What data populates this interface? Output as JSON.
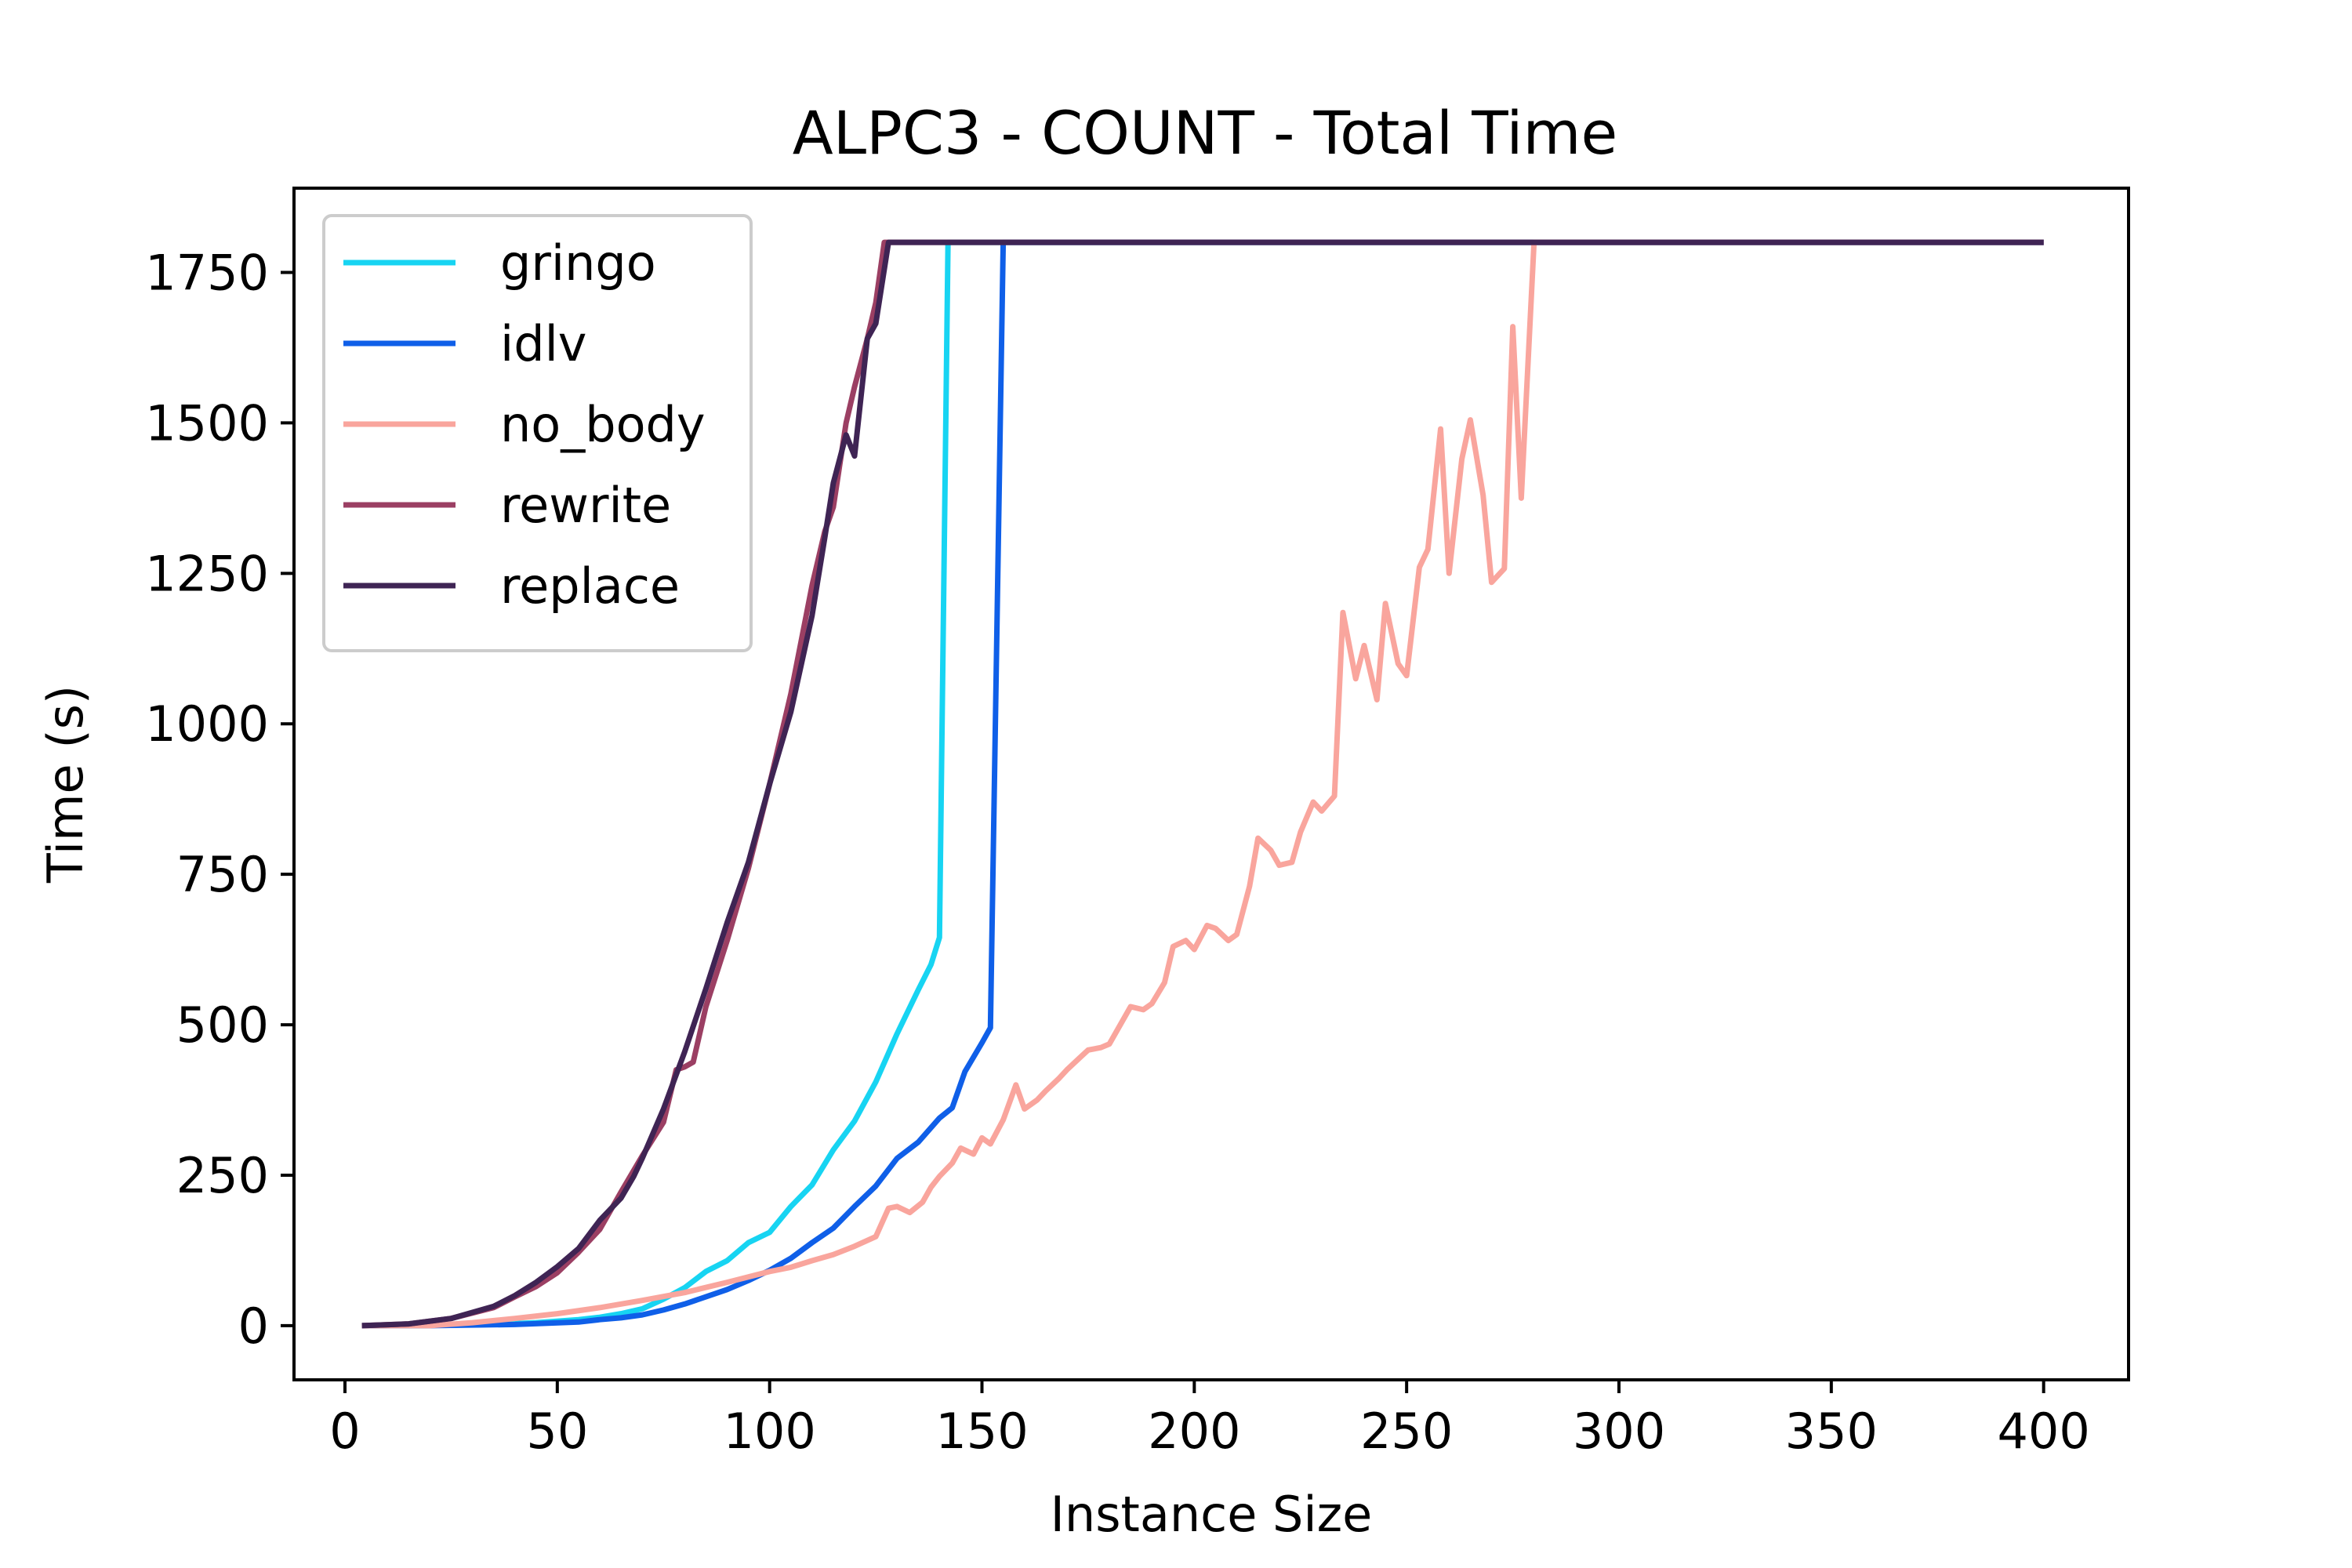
{
  "chart_data": {
    "type": "line",
    "title": "ALPC3 - COUNT - Total Time",
    "xlabel": "Instance Size",
    "ylabel": "Time (s)",
    "xlim": [
      -12,
      420
    ],
    "ylim": [
      -90,
      1890
    ],
    "xticks": [
      0,
      50,
      100,
      150,
      200,
      250,
      300,
      350,
      400
    ],
    "yticks": [
      0,
      250,
      500,
      750,
      1000,
      1250,
      1500,
      1750
    ],
    "grid": false,
    "legend_position": "top-left",
    "series": [
      {
        "name": "gringo",
        "color": "#17d4f2",
        "x": [
          4,
          15,
          25,
          35,
          45,
          55,
          60,
          65,
          70,
          75,
          80,
          85,
          90,
          95,
          100,
          105,
          110,
          115,
          120,
          125,
          130,
          135,
          138,
          140,
          142,
          150,
          200,
          250,
          300,
          350,
          400
        ],
        "y": [
          0,
          0,
          1,
          2,
          5,
          10,
          14,
          20,
          28,
          44,
          63,
          90,
          108,
          138,
          155,
          198,
          234,
          292,
          340,
          405,
          485,
          558,
          600,
          645,
          1800,
          1800,
          1800,
          1800,
          1800,
          1800,
          1800
        ]
      },
      {
        "name": "idlv",
        "color": "#0f5fe8",
        "x": [
          4,
          20,
          40,
          55,
          60,
          65,
          70,
          75,
          80,
          85,
          90,
          95,
          100,
          105,
          110,
          115,
          120,
          125,
          130,
          135,
          140,
          143,
          146,
          150,
          152,
          155,
          200,
          250,
          300,
          350,
          400
        ],
        "y": [
          0,
          0,
          2,
          6,
          10,
          13,
          18,
          26,
          36,
          48,
          60,
          75,
          92,
          112,
          138,
          162,
          198,
          232,
          278,
          305,
          345,
          362,
          422,
          470,
          495,
          1800,
          1800,
          1800,
          1800,
          1800,
          1800
        ]
      },
      {
        "name": "no_body",
        "color": "#f9a59d",
        "x": [
          4,
          20,
          30,
          40,
          50,
          60,
          70,
          80,
          90,
          100,
          105,
          110,
          115,
          120,
          125,
          128,
          130,
          133,
          136,
          138,
          140,
          143,
          145,
          148,
          150,
          152,
          155,
          158,
          160,
          163,
          165,
          168,
          170,
          173,
          175,
          178,
          180,
          185,
          188,
          190,
          193,
          195,
          198,
          200,
          203,
          205,
          208,
          210,
          213,
          215,
          218,
          220,
          223,
          225,
          228,
          230,
          233,
          235,
          238,
          240,
          243,
          245,
          248,
          250,
          253,
          255,
          258,
          260,
          263,
          265,
          268,
          270,
          273,
          275,
          277,
          280,
          283,
          286,
          289,
          292,
          295,
          298,
          301,
          303,
          305,
          320,
          350,
          400
        ],
        "y": [
          0,
          0,
          5,
          12,
          20,
          30,
          42,
          55,
          72,
          90,
          97,
          108,
          118,
          132,
          148,
          195,
          198,
          188,
          205,
          230,
          248,
          270,
          295,
          285,
          312,
          302,
          342,
          400,
          360,
          375,
          390,
          410,
          425,
          445,
          458,
          462,
          468,
          530,
          525,
          535,
          570,
          630,
          640,
          625,
          665,
          660,
          640,
          650,
          730,
          810,
          790,
          765,
          770,
          820,
          870,
          855,
          880,
          1185,
          1075,
          1130,
          1040,
          1200,
          1100,
          1080,
          1260,
          1290,
          1490,
          1250,
          1440,
          1505,
          1380,
          1235,
          1258,
          1660,
          1375,
          1800,
          1800,
          1800,
          1800,
          1800,
          1800,
          1800,
          1800,
          1800,
          1800,
          1800,
          1800,
          1800
        ]
      },
      {
        "name": "rewrite",
        "color": "#9b3f63",
        "x": [
          4,
          15,
          25,
          35,
          40,
          45,
          50,
          55,
          60,
          65,
          70,
          75,
          78,
          80,
          82,
          85,
          90,
          95,
          100,
          105,
          110,
          113,
          115,
          118,
          120,
          123,
          125,
          127,
          130,
          150,
          200,
          250,
          300,
          350,
          400
        ],
        "y": [
          0,
          3,
          12,
          30,
          48,
          65,
          88,
          122,
          160,
          222,
          282,
          338,
          425,
          430,
          438,
          530,
          640,
          760,
          900,
          1050,
          1230,
          1320,
          1360,
          1500,
          1560,
          1640,
          1700,
          1800,
          1800,
          1800,
          1800,
          1800,
          1800,
          1800,
          1800
        ]
      },
      {
        "name": "replace",
        "color": "#3f2454",
        "x": [
          4,
          15,
          25,
          35,
          40,
          45,
          50,
          55,
          60,
          65,
          68,
          70,
          75,
          80,
          85,
          90,
          95,
          100,
          105,
          110,
          113,
          115,
          118,
          120,
          123,
          125,
          128,
          130,
          150,
          200,
          250,
          300,
          350,
          400
        ],
        "y": [
          0,
          3,
          12,
          32,
          50,
          72,
          98,
          128,
          175,
          212,
          248,
          278,
          360,
          455,
          560,
          670,
          770,
          900,
          1020,
          1180,
          1310,
          1400,
          1480,
          1445,
          1640,
          1665,
          1800,
          1800,
          1800,
          1800,
          1800,
          1800,
          1800,
          1800
        ]
      }
    ]
  }
}
